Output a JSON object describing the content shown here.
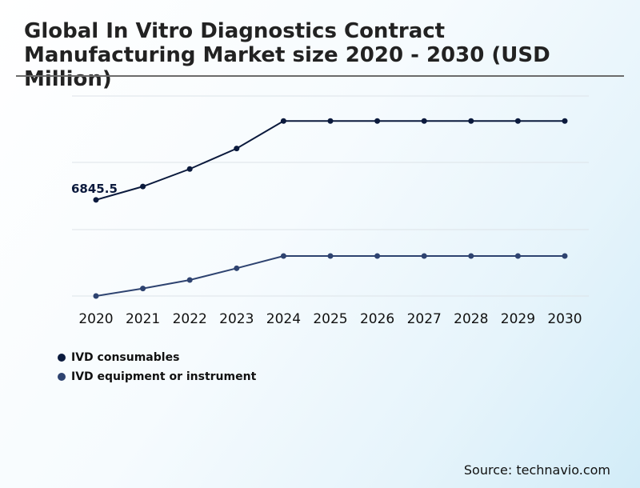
{
  "chart_data": {
    "type": "line",
    "title": "Global In Vitro Diagnostics Contract Manufacturing Market size 2020 - 2030 (USD Million)",
    "xlabel": "",
    "ylabel": "",
    "x": [
      "2020",
      "2021",
      "2022",
      "2023",
      "2024",
      "2025",
      "2026",
      "2027",
      "2028",
      "2029",
      "2030"
    ],
    "ylim": [
      3000,
      11000
    ],
    "grid": true,
    "legend_position": "bottom-left",
    "series": [
      {
        "name": "IVD consumables",
        "color": "#0b1a3d",
        "values": [
          6845.5,
          7380,
          8080,
          8900,
          10000,
          10000,
          10000,
          10000,
          10000,
          10000,
          10000
        ]
      },
      {
        "name": "IVD equipment or instrument",
        "color": "#2e4370",
        "values": [
          3000,
          3300,
          3640,
          4110,
          4600,
          4600,
          4600,
          4600,
          4600,
          4600,
          4600
        ]
      }
    ],
    "annotations": [
      {
        "series": 0,
        "index": 0,
        "text": "6845.5"
      }
    ]
  },
  "source": "Source: technavio.com"
}
